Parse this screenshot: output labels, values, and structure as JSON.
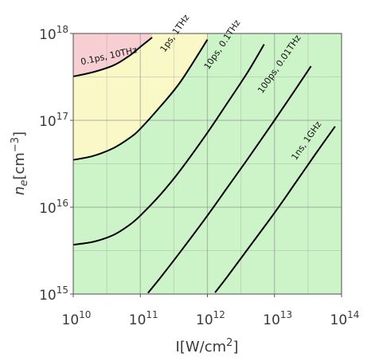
{
  "chart_data": {
    "type": "line",
    "xscale": "log",
    "yscale": "log",
    "xlim": [
      10000000000.0,
      100000000000000.0
    ],
    "ylim": [
      1000000000000000.0,
      1e+18
    ],
    "xlabel": "I[W/cm²]",
    "ylabel": "n_e[cm⁻³]",
    "grid": true,
    "x_ticks": [
      {
        "base": "10",
        "exp": "10",
        "value": 10000000000.0
      },
      {
        "base": "10",
        "exp": "11",
        "value": 100000000000.0
      },
      {
        "base": "10",
        "exp": "12",
        "value": 1000000000000.0
      },
      {
        "base": "10",
        "exp": "13",
        "value": 10000000000000.0
      },
      {
        "base": "10",
        "exp": "14",
        "value": 100000000000000.0
      }
    ],
    "y_ticks": [
      {
        "base": "10",
        "exp": "15",
        "value": 1000000000000000.0
      },
      {
        "base": "10",
        "exp": "16",
        "value": 1e+16
      },
      {
        "base": "10",
        "exp": "17",
        "value": 1e+17
      },
      {
        "base": "10",
        "exp": "18",
        "value": 1e+18
      }
    ],
    "regions": [
      {
        "color": "#f7cfd3",
        "bounded_by": "0.1ps, 10THz"
      },
      {
        "color": "#fbf8c8",
        "bounded_by": "1ps, 1THz"
      },
      {
        "color": "#cdf4c8",
        "bounded_by": "10ps, 0.1THz"
      }
    ],
    "series": [
      {
        "name": "0.1ps, 10THz",
        "color": "#000000",
        "x": [
          10000000000.0,
          20000000000.0,
          40000000000.0,
          70000000000.0,
          100000000000.0,
          150000000000.0
        ],
        "y": [
          3.2e+17,
          3.6e+17,
          4.3e+17,
          5.6e+17,
          7e+17,
          9e+17
        ]
      },
      {
        "name": "1ps, 1THz",
        "color": "#000000",
        "x": [
          10000000000.0,
          20000000000.0,
          40000000000.0,
          70000000000.0,
          100000000000.0,
          200000000000.0,
          400000000000.0,
          1000000000000.0
        ],
        "y": [
          3.5e+16,
          3.9e+16,
          4.8e+16,
          6.3e+16,
          8e+16,
          1.45e+17,
          2.8e+17,
          8.5e+17
        ]
      },
      {
        "name": "10ps, 0.1THz",
        "color": "#000000",
        "x": [
          10000000000.0,
          20000000000.0,
          40000000000.0,
          70000000000.0,
          100000000000.0,
          200000000000.0,
          400000000000.0,
          1000000000000.0,
          2000000000000.0,
          4000000000000.0,
          7000000000000.0
        ],
        "y": [
          3700000000000000.0,
          4000000000000000.0,
          4800000000000000.0,
          6300000000000000.0,
          8000000000000000.0,
          1.4e+16,
          2.7e+16,
          7.2e+16,
          1.6e+17,
          3.6e+17,
          7.5e+17
        ]
      },
      {
        "name": "100ps, 0.01THz",
        "color": "#000000",
        "x": [
          130000000000.0,
          200000000000.0,
          400000000000.0,
          1000000000000.0,
          2000000000000.0,
          4000000000000.0,
          10000000000000.0,
          20000000000000.0,
          35000000000000.0
        ],
        "y": [
          1030000000000000.0,
          1550000000000000.0,
          3100000000000000.0,
          8000000000000000.0,
          1.7e+16,
          3.6e+16,
          1e+17,
          2.2e+17,
          4.2e+17
        ]
      },
      {
        "name": "1ns, 1GHz",
        "color": "#000000",
        "x": [
          1300000000000.0,
          2000000000000.0,
          4000000000000.0,
          10000000000000.0,
          20000000000000.0,
          40000000000000.0,
          80000000000000.0
        ],
        "y": [
          1040000000000000.0,
          1600000000000000.0,
          3300000000000000.0,
          8600000000000000.0,
          1.85e+16,
          4e+16,
          8.5e+16
        ]
      }
    ]
  }
}
